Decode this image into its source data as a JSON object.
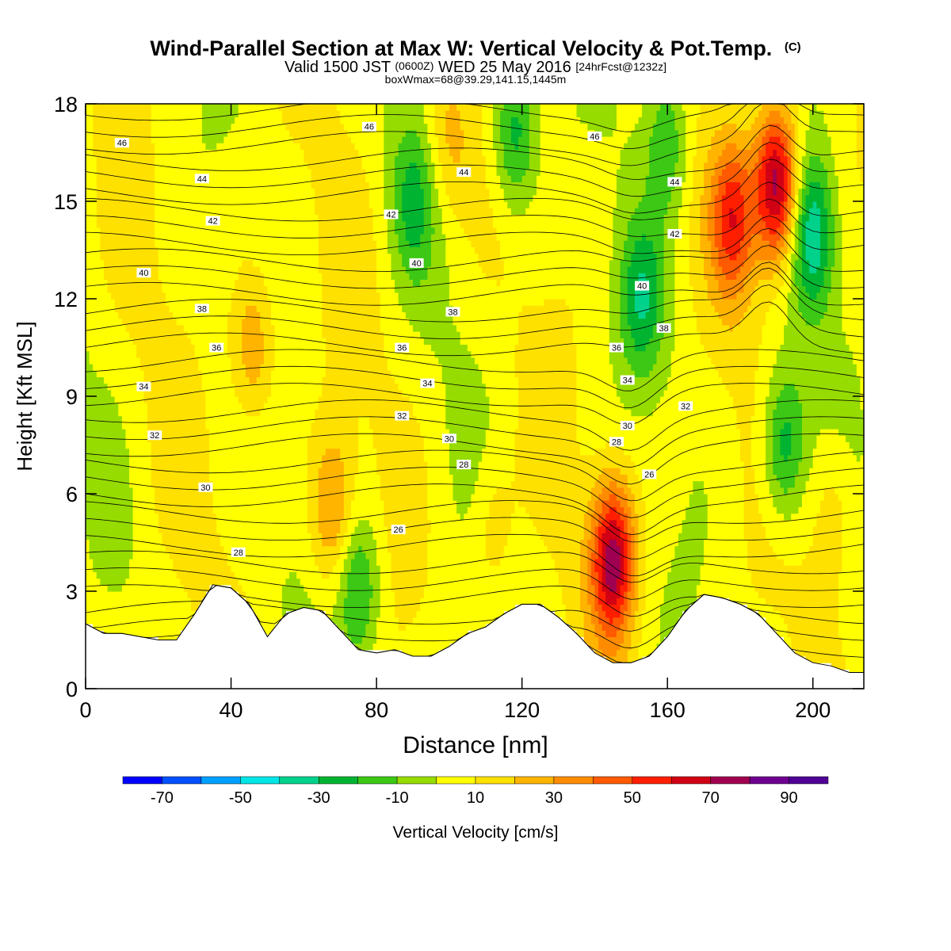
{
  "chart_data": {
    "type": "heatmap",
    "title": "Wind-Parallel Section at Max W: Vertical Velocity & Pot.Temp.",
    "title_mark": "(C)",
    "subtitle": {
      "valid": "Valid 1500 JST",
      "utc": "(0600Z)",
      "date": "WED 25 May 2016",
      "forecast": "[24hrFcst@1232z]"
    },
    "box_info": "boxWmax=68@39.29,141.15,1445m",
    "xlabel": "Distance [nm]",
    "ylabel": "Height [Kft MSL]",
    "xlim": [
      0,
      214
    ],
    "ylim": [
      0,
      18
    ],
    "x_ticks": [
      0,
      40,
      80,
      120,
      160,
      200
    ],
    "y_ticks": [
      0,
      3,
      6,
      9,
      12,
      15,
      18
    ],
    "colorbar": {
      "label": "Vertical Velocity [cm/s]",
      "levels": [
        -80,
        -70,
        -60,
        -50,
        -40,
        -30,
        -20,
        -10,
        0,
        10,
        20,
        30,
        40,
        50,
        60,
        70,
        80,
        90,
        100
      ],
      "tick_labels": [
        "-70",
        "-50",
        "-30",
        "-10",
        "10",
        "30",
        "50",
        "70",
        "90"
      ],
      "colors": [
        "#0000ff",
        "#0050ff",
        "#00a0ff",
        "#00e6e6",
        "#00d28c",
        "#00b432",
        "#3cc814",
        "#96dc00",
        "#ffff00",
        "#ffe100",
        "#ffb400",
        "#ff8c00",
        "#ff5a00",
        "#ff1e00",
        "#d20014",
        "#a00050",
        "#6e0091",
        "#500096"
      ]
    },
    "updrafts": [
      {
        "x": 145,
        "y": 4.0,
        "peak": 68
      },
      {
        "x": 178,
        "y": 14.5,
        "peak": 45
      },
      {
        "x": 190,
        "y": 15.5,
        "peak": 75
      },
      {
        "x": 46,
        "y": 10.5,
        "peak": 26
      },
      {
        "x": 68,
        "y": 5.5,
        "peak": 28
      },
      {
        "x": 112,
        "y": 5.0,
        "peak": 15
      },
      {
        "x": 100,
        "y": 17.0,
        "peak": 18
      },
      {
        "x": 206,
        "y": 5.5,
        "peak": 15
      }
    ],
    "downdrafts": [
      {
        "x": 153,
        "y": 12.0,
        "peak": -30
      },
      {
        "x": 200,
        "y": 14.0,
        "peak": -40
      },
      {
        "x": 192,
        "y": 7.5,
        "peak": -36
      },
      {
        "x": 118,
        "y": 17.2,
        "peak": -34
      },
      {
        "x": 90,
        "y": 15.0,
        "peak": -22
      },
      {
        "x": 75,
        "y": 3.0,
        "peak": -30
      },
      {
        "x": 160,
        "y": 17.0,
        "peak": -26
      }
    ],
    "terrain": {
      "x": [
        0,
        5,
        10,
        15,
        20,
        25,
        30,
        35,
        40,
        45,
        50,
        55,
        60,
        65,
        70,
        75,
        80,
        85,
        90,
        95,
        100,
        105,
        110,
        115,
        120,
        125,
        130,
        135,
        140,
        145,
        150,
        155,
        160,
        165,
        170,
        175,
        180,
        185,
        190,
        195,
        200,
        205,
        210,
        214
      ],
      "height": [
        2.0,
        1.7,
        1.7,
        1.6,
        1.5,
        1.5,
        2.3,
        3.2,
        3.1,
        2.6,
        1.6,
        2.3,
        2.5,
        2.4,
        1.8,
        1.2,
        1.1,
        1.2,
        1.0,
        1.0,
        1.3,
        1.7,
        1.9,
        2.3,
        2.6,
        2.6,
        2.2,
        1.7,
        1.1,
        0.8,
        0.8,
        1.0,
        1.6,
        2.4,
        2.9,
        2.8,
        2.6,
        2.3,
        1.7,
        1.1,
        0.8,
        0.7,
        0.5,
        0.5
      ]
    },
    "isentropes": {
      "levels": [
        26,
        28,
        30,
        32,
        34,
        36,
        38,
        40,
        42,
        44,
        46
      ],
      "labels": [
        {
          "text": "46",
          "x": 10,
          "y": 16.8
        },
        {
          "text": "44",
          "x": 32,
          "y": 15.7
        },
        {
          "text": "42",
          "x": 35,
          "y": 14.4
        },
        {
          "text": "40",
          "x": 16,
          "y": 12.8
        },
        {
          "text": "38",
          "x": 32,
          "y": 11.7
        },
        {
          "text": "36",
          "x": 36,
          "y": 10.5
        },
        {
          "text": "34",
          "x": 16,
          "y": 9.3
        },
        {
          "text": "32",
          "x": 19,
          "y": 7.8
        },
        {
          "text": "30",
          "x": 33,
          "y": 6.2
        },
        {
          "text": "28",
          "x": 42,
          "y": 4.2
        },
        {
          "text": "46",
          "x": 78,
          "y": 17.3
        },
        {
          "text": "44",
          "x": 104,
          "y": 15.9
        },
        {
          "text": "42",
          "x": 84,
          "y": 14.6
        },
        {
          "text": "40",
          "x": 91,
          "y": 13.1
        },
        {
          "text": "38",
          "x": 101,
          "y": 11.6
        },
        {
          "text": "36",
          "x": 87,
          "y": 10.5
        },
        {
          "text": "34",
          "x": 94,
          "y": 9.4
        },
        {
          "text": "32",
          "x": 87,
          "y": 8.4
        },
        {
          "text": "30",
          "x": 100,
          "y": 7.7
        },
        {
          "text": "28",
          "x": 104,
          "y": 6.9
        },
        {
          "text": "26",
          "x": 86,
          "y": 4.9
        },
        {
          "text": "46",
          "x": 140,
          "y": 17.0
        },
        {
          "text": "44",
          "x": 162,
          "y": 15.6
        },
        {
          "text": "42",
          "x": 162,
          "y": 14.0
        },
        {
          "text": "40",
          "x": 153,
          "y": 12.4
        },
        {
          "text": "38",
          "x": 159,
          "y": 11.1
        },
        {
          "text": "36",
          "x": 146,
          "y": 10.5
        },
        {
          "text": "34",
          "x": 149,
          "y": 9.5
        },
        {
          "text": "32",
          "x": 165,
          "y": 8.7
        },
        {
          "text": "30",
          "x": 149,
          "y": 8.1
        },
        {
          "text": "28",
          "x": 146,
          "y": 7.6
        },
        {
          "text": "26",
          "x": 155,
          "y": 6.6
        }
      ]
    }
  }
}
